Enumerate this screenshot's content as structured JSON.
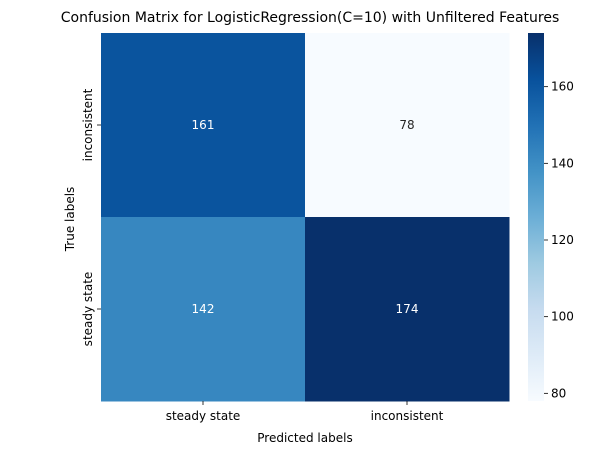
{
  "chart_data": {
    "type": "heatmap",
    "title": "Confusion Matrix for LogisticRegression(C=10) with Unfiltered Features",
    "xlabel": "Predicted labels",
    "ylabel": "True labels",
    "x_categories": [
      "steady state",
      "inconsistent"
    ],
    "y_categories": [
      "inconsistent",
      "steady state"
    ],
    "values": [
      [
        161,
        78
      ],
      [
        142,
        174
      ]
    ],
    "colormap": "Blues",
    "color_range": [
      78,
      174
    ],
    "colorbar_ticks": [
      80,
      100,
      120,
      140,
      160
    ],
    "legend": "colorbar-right"
  }
}
